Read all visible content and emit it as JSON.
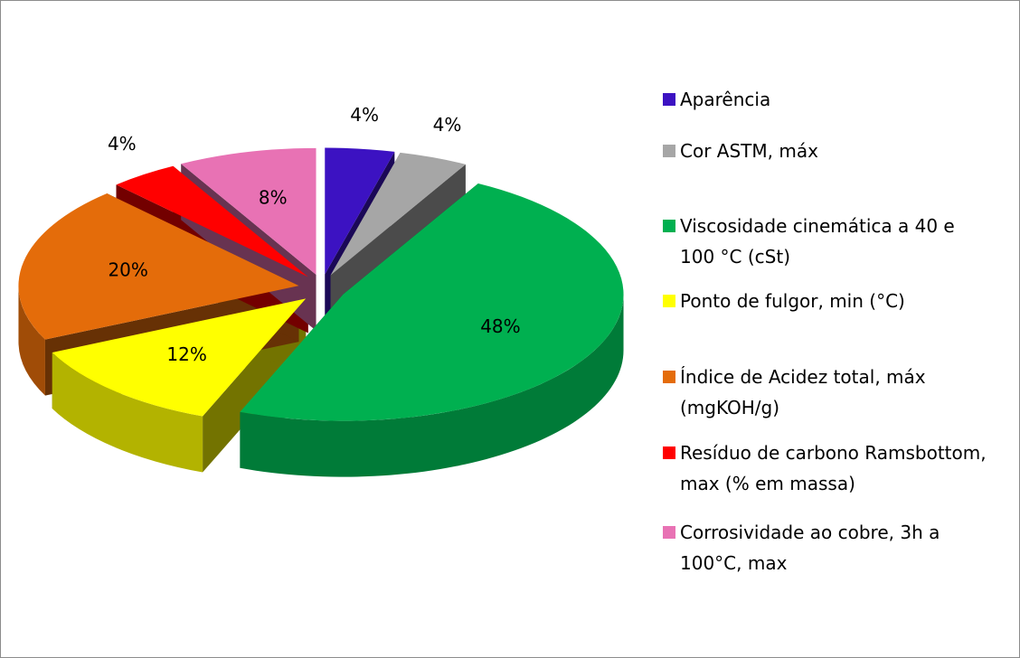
{
  "chart_data": {
    "type": "pie",
    "categories": [
      "Aparência",
      "Cor ASTM, máx",
      "Viscosidade cinemática a 40 e 100 °C (cSt)",
      "Ponto de fulgor, min (°C)",
      "Índice de Acidez total, máx (mgKOH/g)",
      "Resíduo de carbono Ramsbottom, max (% em massa)",
      "Corrosividade ao cobre, 3h a 100°C, max"
    ],
    "values": [
      4,
      4,
      48,
      12,
      20,
      4,
      8
    ],
    "value_labels": [
      "4%",
      "4%",
      "48%",
      "12%",
      "20%",
      "4%",
      "8%"
    ],
    "colors": [
      "#3c12c2",
      "#a6a6a6",
      "#00b050",
      "#ffff00",
      "#e46c0a",
      "#ff0000",
      "#e872b4"
    ],
    "legend": "right"
  }
}
